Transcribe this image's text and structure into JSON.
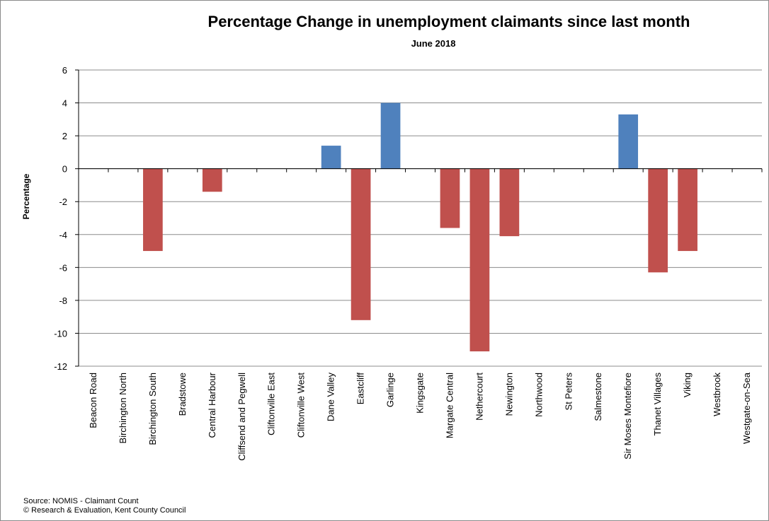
{
  "chart_data": {
    "type": "bar",
    "title": "Percentage Change in unemployment claimants since last month",
    "subtitle": "June 2018",
    "xlabel": "",
    "ylabel": "Percentage",
    "ylim": [
      -12,
      6
    ],
    "yticks": [
      6,
      4,
      2,
      0,
      -2,
      -4,
      -6,
      -8,
      -10,
      -12
    ],
    "grid": true,
    "legend": "none",
    "colors": {
      "positive": "#4f81bd",
      "negative": "#c0504d"
    },
    "categories": [
      "Beacon Road",
      "Birchington North",
      "Birchington South",
      "Bradstowe",
      "Central Harbour",
      "Cliffsend and Pegwell",
      "Cliftonville East",
      "Cliftonville West",
      "Dane Valley",
      "Eastcliff",
      "Garlinge",
      "Kingsgate",
      "Margate Central",
      "Nethercourt",
      "Newington",
      "Northwood",
      "St Peters",
      "Salmestone",
      "Sir Moses Montefiore",
      "Thanet Villages",
      "Viking",
      "Westbrook",
      "Westgate-on-Sea"
    ],
    "values": [
      0,
      0,
      -5.0,
      0,
      -1.4,
      0,
      0,
      0,
      1.4,
      -9.2,
      4.0,
      0,
      -3.6,
      -11.1,
      -4.1,
      0,
      0,
      0,
      3.3,
      -6.3,
      -5.0,
      0,
      0
    ]
  },
  "footer": {
    "source_line1": "Source: NOMIS - Claimant Count",
    "source_line2": "© Research & Evaluation, Kent County Council"
  }
}
